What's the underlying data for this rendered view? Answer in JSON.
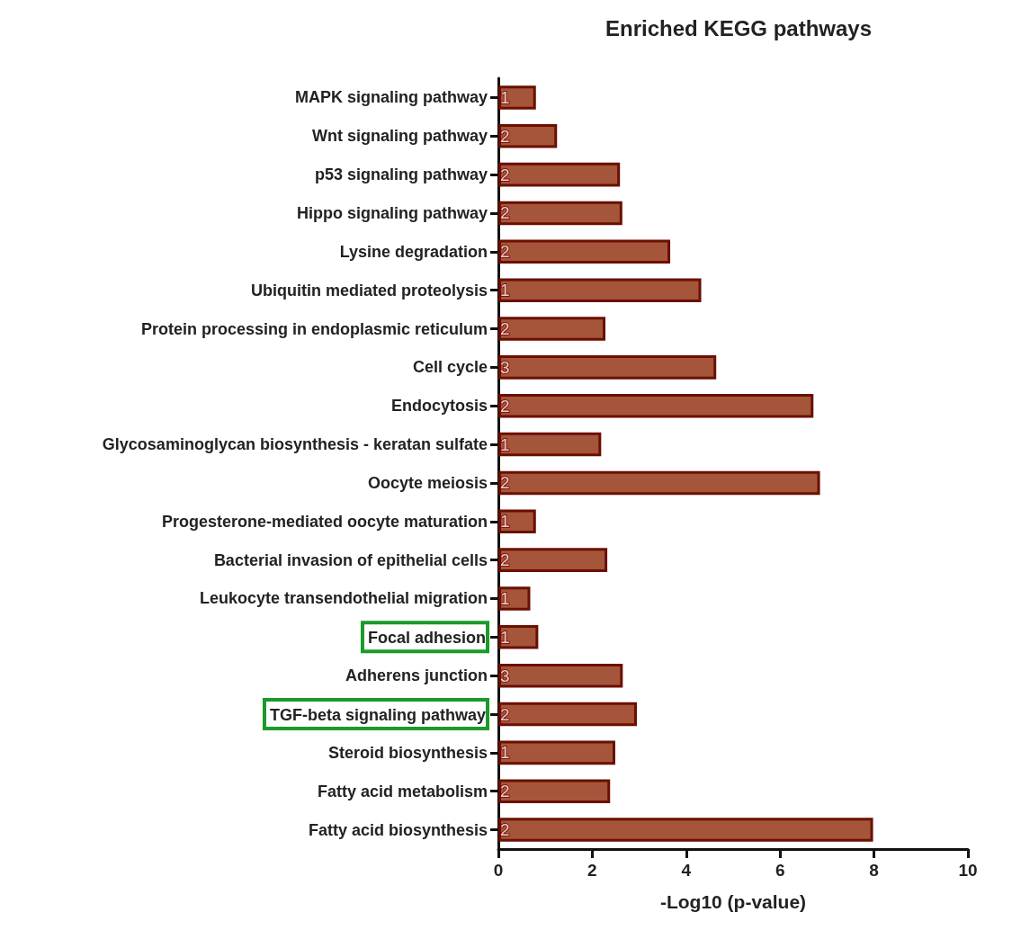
{
  "chart_data": {
    "type": "bar",
    "orientation": "horizontal",
    "title": "Enriched KEGG pathways",
    "xlabel": "-Log10 (p-value)",
    "categories": [
      "MAPK signaling pathway",
      "Wnt signaling pathway",
      "p53 signaling pathway",
      "Hippo signaling pathway",
      "Lysine degradation",
      "Ubiquitin mediated proteolysis",
      "Protein processing in endoplasmic reticulum",
      "Cell cycle",
      "Endocytosis",
      "Glycosaminoglycan biosynthesis - keratan sulfate",
      "Oocyte meiosis",
      "Progesterone-mediated oocyte maturation",
      "Bacterial invasion of epithelial cells",
      "Leukocyte transendothelial migration",
      "Focal adhesion",
      "Adherens junction",
      "TGF-beta signaling pathway",
      "Steroid biosynthesis",
      "Fatty acid metabolism",
      "Fatty acid biosynthesis"
    ],
    "values": [
      0.8,
      1.25,
      2.59,
      2.64,
      3.66,
      4.32,
      2.28,
      4.64,
      6.71,
      2.19,
      6.85,
      0.8,
      2.32,
      0.68,
      0.85,
      2.65,
      2.95,
      2.49,
      2.38,
      7.98
    ],
    "annotations": [
      {
        "text": "1",
        "y": "MAPK signaling pathway"
      },
      {
        "text": "2",
        "y": "Wnt signaling pathway"
      },
      {
        "text": "2",
        "y": "p53 signaling pathway"
      },
      {
        "text": "2",
        "y": "Hippo signaling pathway"
      },
      {
        "text": "2",
        "y": "Lysine degradation"
      },
      {
        "text": "1",
        "y": "Ubiquitin mediated proteolysis"
      },
      {
        "text": "2",
        "y": "Protein processing in endoplasmic reticulum"
      },
      {
        "text": "3",
        "y": "Cell cycle"
      },
      {
        "text": "2",
        "y": "Endocytosis"
      },
      {
        "text": "1",
        "y": "Glycosaminoglycan biosynthesis - keratan sulfate"
      },
      {
        "text": "2",
        "y": "Oocyte meiosis"
      },
      {
        "text": "1",
        "y": "Progesterone-mediated oocyte maturation"
      },
      {
        "text": "2",
        "y": "Bacterial invasion of epithelial cells"
      },
      {
        "text": "1",
        "y": "Leukocyte transendothelial migration"
      },
      {
        "text": "1",
        "y": "Focal adhesion"
      },
      {
        "text": "3",
        "y": "Adherens junction"
      },
      {
        "text": "2",
        "y": "TGF-beta signaling pathway"
      },
      {
        "text": "1",
        "y": "Steroid biosynthesis"
      },
      {
        "text": "2",
        "y": "Fatty acid metabolism"
      },
      {
        "text": "2",
        "y": "Fatty acid biosynthesis"
      }
    ],
    "color": "#a5553a",
    "xlim": [
      0,
      10
    ],
    "xticks": [
      0,
      2,
      4,
      6,
      8,
      10
    ],
    "grid": false
  }
}
